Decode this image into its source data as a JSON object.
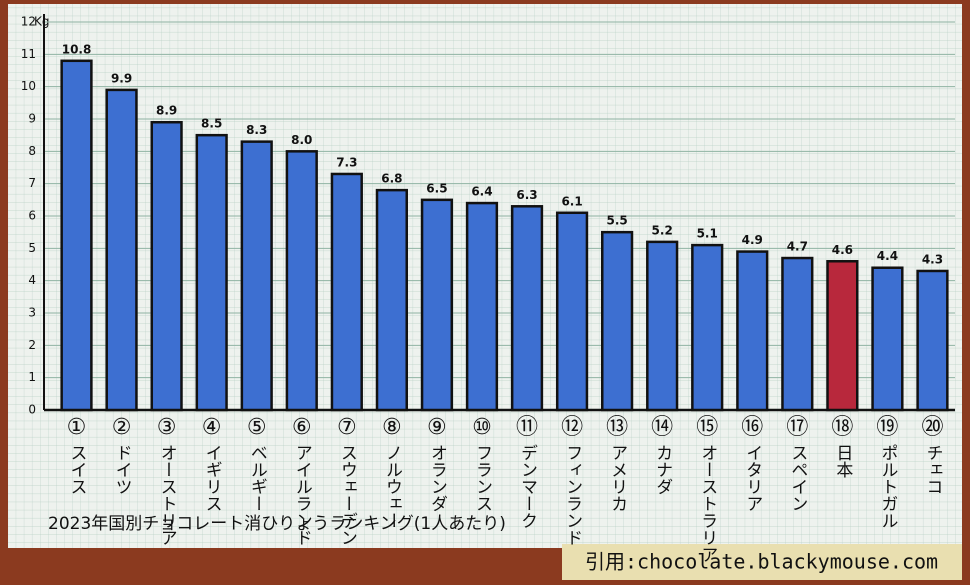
{
  "chart_data": {
    "type": "bar",
    "title": "2023年国別チョコレート消ひりょうランキング(1人あたり)",
    "source": "引用:chocolate.blackymouse.com",
    "y_unit": "Kg",
    "ranks": [
      "①",
      "②",
      "③",
      "④",
      "⑤",
      "⑥",
      "⑦",
      "⑧",
      "⑨",
      "⑩",
      "⑪",
      "⑫",
      "⑬",
      "⑭",
      "⑮",
      "⑯",
      "⑰",
      "⑱",
      "⑲",
      "⑳"
    ],
    "categories": [
      "スイス",
      "ドイツ",
      "オーストリア",
      "イギリス",
      "ベルギー",
      "アイルランド",
      "スウェーデン",
      "ノルウェー",
      "オランダ",
      "フランス",
      "デンマーク",
      "フィンランド",
      "アメリカ",
      "カナダ",
      "オーストラリア",
      "イタリア",
      "スペイン",
      "日本",
      "ポルトガル",
      "チェコ"
    ],
    "values": [
      10.8,
      9.9,
      8.9,
      8.5,
      8.3,
      8.0,
      7.3,
      6.8,
      6.5,
      6.4,
      6.3,
      6.1,
      5.5,
      5.2,
      5.1,
      4.9,
      4.7,
      4.6,
      4.4,
      4.3
    ],
    "value_labels": [
      "10.8",
      "9.9",
      "8.9",
      "8.5",
      "8.3",
      "8.0",
      "7.3",
      "6.8",
      "6.5",
      "6.4",
      "6.3",
      "6.1",
      "5.5",
      "5.2",
      "5.1",
      "4.9",
      "4.7",
      "4.6",
      "4.4",
      "4.3"
    ],
    "colors": [
      "#3d6fd1",
      "#3d6fd1",
      "#3d6fd1",
      "#3d6fd1",
      "#3d6fd1",
      "#3d6fd1",
      "#3d6fd1",
      "#3d6fd1",
      "#3d6fd1",
      "#3d6fd1",
      "#3d6fd1",
      "#3d6fd1",
      "#3d6fd1",
      "#3d6fd1",
      "#3d6fd1",
      "#3d6fd1",
      "#3d6fd1",
      "#b8283c",
      "#3d6fd1",
      "#3d6fd1"
    ],
    "ylim": [
      0,
      12
    ],
    "yticks": [
      0,
      1,
      2,
      3,
      4,
      5,
      6,
      7,
      8,
      9,
      10,
      11,
      12
    ],
    "grid": true
  }
}
